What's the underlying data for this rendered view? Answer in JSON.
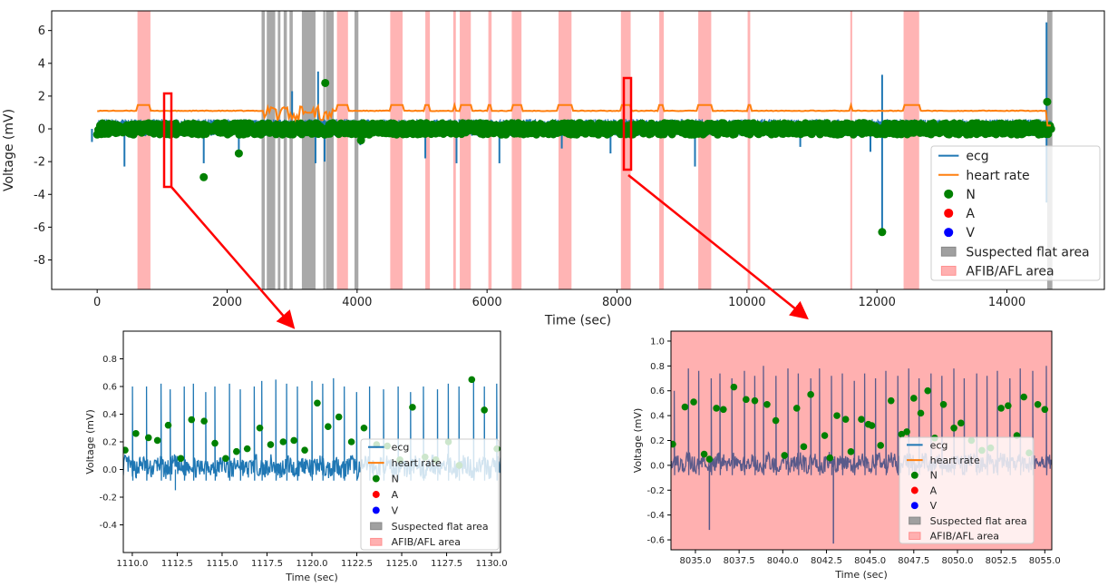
{
  "colors": {
    "ecg": "#1f77b4",
    "heart_rate": "#ff7f0e",
    "N": "#008000",
    "A": "#ff0000",
    "V": "#0000ff",
    "flat": "#a0a0a0",
    "afib": "#ffb0b0",
    "callout": "#ff0000"
  },
  "chart_data": [
    {
      "id": "main",
      "type": "line",
      "xlabel": "Time (sec)",
      "ylabel": "Voltage (mV)",
      "xlim": [
        -700,
        15500
      ],
      "ylim": [
        -9.8,
        7.2
      ],
      "xticks": [
        0,
        2000,
        4000,
        6000,
        8000,
        10000,
        12000,
        14000
      ],
      "yticks": [
        -8,
        -6,
        -4,
        -2,
        0,
        2,
        4,
        6
      ],
      "legend_position": "lower-right",
      "legend": [
        "ecg",
        "heart rate",
        "N",
        "A",
        "V",
        "Suspected flat area",
        "AFIB/AFL area"
      ],
      "heart_rate_level": 1.1,
      "afib_areas": [
        [
          620,
          820
        ],
        [
          3690,
          3860
        ],
        [
          4510,
          4700
        ],
        [
          5050,
          5120
        ],
        [
          5480,
          5520
        ],
        [
          5580,
          5750
        ],
        [
          6020,
          6070
        ],
        [
          6380,
          6530
        ],
        [
          7100,
          7300
        ],
        [
          8060,
          8210
        ],
        [
          8650,
          8720
        ],
        [
          9250,
          9450
        ],
        [
          10010,
          10050
        ],
        [
          11590,
          11620
        ],
        [
          12410,
          12650
        ]
      ],
      "flat_areas": [
        [
          2530,
          2580
        ],
        [
          2610,
          2740
        ],
        [
          2780,
          2820
        ],
        [
          2870,
          2920
        ],
        [
          2960,
          3010
        ],
        [
          3150,
          3360
        ],
        [
          3480,
          3500
        ],
        [
          3520,
          3640
        ],
        [
          3960,
          4020
        ],
        [
          14620,
          14700
        ]
      ],
      "ecg_spikes": [
        [
          -80,
          -0.8
        ],
        [
          420,
          -2.3
        ],
        [
          1640,
          -2.1
        ],
        [
          2180,
          -1.4
        ],
        [
          3000,
          2.3
        ],
        [
          3360,
          -2.1
        ],
        [
          3400,
          3.5
        ],
        [
          3500,
          -2.0
        ],
        [
          4050,
          -1.0
        ],
        [
          5050,
          -1.8
        ],
        [
          5530,
          -2.1
        ],
        [
          6190,
          -2.1
        ],
        [
          7150,
          -1.2
        ],
        [
          7900,
          -1.5
        ],
        [
          9200,
          -2.3
        ],
        [
          10820,
          -1.1
        ],
        [
          11900,
          -1.4
        ],
        [
          12080,
          3.3
        ],
        [
          12080,
          -6.2
        ],
        [
          14610,
          6.5
        ],
        [
          14610,
          -4.5
        ]
      ],
      "n_outliers": [
        [
          1640,
          -2.95
        ],
        [
          2180,
          -1.5
        ],
        [
          3510,
          2.8
        ],
        [
          4060,
          -0.7
        ],
        [
          12080,
          -6.3
        ],
        [
          14620,
          1.65
        ]
      ]
    },
    {
      "id": "inset1",
      "type": "line",
      "xlabel": "Time (sec)",
      "ylabel": "Voltage (mV)",
      "xlim": [
        1109.5,
        1130.5
      ],
      "ylim": [
        -0.6,
        1.0
      ],
      "xticks": [
        1110.0,
        1112.5,
        1115.0,
        1117.5,
        1120.0,
        1122.5,
        1125.0,
        1127.5,
        1130.0
      ],
      "yticks": [
        -0.4,
        -0.2,
        0.0,
        0.2,
        0.4,
        0.6,
        0.8
      ],
      "legend_position": "lower-right",
      "legend": [
        "ecg",
        "heart rate",
        "N",
        "A",
        "V",
        "Suspected flat area",
        "AFIB/AFL area"
      ],
      "peaks": [
        1110.0,
        1110.8,
        1111.6,
        1112.1,
        1112.9,
        1113.4,
        1114.1,
        1114.6,
        1115.4,
        1116.0,
        1116.8,
        1117.2,
        1118.0,
        1118.6,
        1119.2,
        1120.0,
        1120.6,
        1121.2,
        1121.8,
        1122.5,
        1123.2,
        1124.0,
        1124.8,
        1125.5,
        1126.2,
        1127.0,
        1127.6,
        1128.2,
        1129.0,
        1129.6,
        1130.3
      ],
      "peak_values": [
        0.6,
        0.6,
        0.62,
        0.58,
        0.6,
        0.62,
        0.56,
        0.6,
        0.62,
        0.58,
        0.6,
        0.64,
        0.65,
        0.62,
        0.6,
        0.64,
        0.62,
        0.66,
        0.6,
        0.56,
        0.6,
        0.58,
        0.6,
        0.56,
        0.6,
        0.58,
        0.62,
        0.6,
        0.66,
        0.6,
        0.62
      ],
      "N_points": [
        [
          1109.6,
          0.14
        ],
        [
          1110.2,
          0.26
        ],
        [
          1110.9,
          0.23
        ],
        [
          1111.4,
          0.21
        ],
        [
          1112.0,
          0.32
        ],
        [
          1112.7,
          0.08
        ],
        [
          1113.3,
          0.36
        ],
        [
          1114.0,
          0.35
        ],
        [
          1114.6,
          0.19
        ],
        [
          1115.2,
          0.08
        ],
        [
          1115.8,
          0.13
        ],
        [
          1116.4,
          0.15
        ],
        [
          1117.1,
          0.3
        ],
        [
          1117.7,
          0.18
        ],
        [
          1118.4,
          0.2
        ],
        [
          1119.0,
          0.21
        ],
        [
          1119.6,
          0.14
        ],
        [
          1120.3,
          0.48
        ],
        [
          1120.9,
          0.31
        ],
        [
          1121.5,
          0.38
        ],
        [
          1122.2,
          0.2
        ],
        [
          1122.9,
          0.3
        ],
        [
          1123.6,
          0.18
        ],
        [
          1124.2,
          0.17
        ],
        [
          1124.9,
          0.07
        ],
        [
          1125.6,
          0.45
        ],
        [
          1126.3,
          0.09
        ],
        [
          1126.9,
          0.07
        ],
        [
          1127.6,
          0.2
        ],
        [
          1128.2,
          0.03
        ],
        [
          1128.9,
          0.65
        ],
        [
          1129.6,
          0.43
        ],
        [
          1130.3,
          0.15
        ]
      ]
    },
    {
      "id": "inset2",
      "type": "line",
      "xlabel": "Time (sec)",
      "ylabel": "Voltage (mV)",
      "xlim": [
        8033.6,
        8055.4
      ],
      "ylim": [
        -0.68,
        1.08
      ],
      "xticks": [
        8035.0,
        8037.5,
        8040.0,
        8042.5,
        8045.0,
        8047.5,
        8050.0,
        8052.5,
        8055.0
      ],
      "yticks": [
        -0.6,
        -0.4,
        -0.2,
        0.0,
        0.2,
        0.4,
        0.6,
        0.8,
        1.0
      ],
      "legend_position": "lower-right",
      "legend": [
        "ecg",
        "heart rate",
        "N",
        "A",
        "V",
        "Suspected flat area",
        "AFIB/AFL area"
      ],
      "peaks": [
        8033.8,
        8034.6,
        8035.2,
        8035.9,
        8036.4,
        8037.1,
        8037.8,
        8038.4,
        8038.9,
        8039.6,
        8040.3,
        8040.9,
        8041.6,
        8042.1,
        8042.8,
        8043.4,
        8044.1,
        8044.7,
        8045.3,
        8045.9,
        8046.6,
        8047.2,
        8047.8,
        8048.5,
        8049.1,
        8049.8,
        8050.4,
        8051.1,
        8051.7,
        8052.3,
        8053.0,
        8053.6,
        8054.3,
        8055.1
      ],
      "peak_values": [
        0.6,
        0.78,
        0.76,
        0.7,
        0.74,
        0.7,
        0.76,
        0.72,
        0.8,
        0.72,
        0.78,
        0.74,
        0.7,
        0.78,
        0.72,
        0.74,
        0.68,
        0.74,
        0.7,
        0.76,
        0.72,
        0.78,
        0.7,
        0.74,
        0.72,
        0.78,
        0.7,
        0.74,
        0.72,
        0.76,
        0.7,
        0.78,
        0.76,
        0.8
      ],
      "N_points": [
        [
          8033.7,
          0.17
        ],
        [
          8034.4,
          0.47
        ],
        [
          8034.9,
          0.51
        ],
        [
          8035.5,
          0.09
        ],
        [
          8035.8,
          0.05
        ],
        [
          8036.2,
          0.46
        ],
        [
          8036.6,
          0.45
        ],
        [
          8037.2,
          0.63
        ],
        [
          8037.9,
          0.53
        ],
        [
          8038.4,
          0.52
        ],
        [
          8039.1,
          0.49
        ],
        [
          8039.6,
          0.36
        ],
        [
          8040.1,
          0.08
        ],
        [
          8040.8,
          0.46
        ],
        [
          8041.2,
          0.15
        ],
        [
          8041.6,
          0.57
        ],
        [
          8042.4,
          0.24
        ],
        [
          8042.7,
          0.06
        ],
        [
          8043.1,
          0.4
        ],
        [
          8043.6,
          0.37
        ],
        [
          8043.9,
          0.11
        ],
        [
          8044.5,
          0.37
        ],
        [
          8044.9,
          0.33
        ],
        [
          8045.1,
          0.32
        ],
        [
          8045.6,
          0.16
        ],
        [
          8046.2,
          0.52
        ],
        [
          8046.8,
          0.25
        ],
        [
          8047.1,
          0.27
        ],
        [
          8047.5,
          0.54
        ],
        [
          8047.9,
          0.42
        ],
        [
          8048.3,
          0.6
        ],
        [
          8048.7,
          0.22
        ],
        [
          8049.2,
          0.49
        ],
        [
          8049.8,
          0.3
        ],
        [
          8050.2,
          0.34
        ],
        [
          8050.8,
          0.2
        ],
        [
          8051.4,
          0.12
        ],
        [
          8051.9,
          0.14
        ],
        [
          8052.5,
          0.46
        ],
        [
          8052.9,
          0.48
        ],
        [
          8053.4,
          0.24
        ],
        [
          8053.8,
          0.55
        ],
        [
          8054.1,
          0.1
        ],
        [
          8054.6,
          0.49
        ],
        [
          8055.0,
          0.45
        ]
      ]
    }
  ]
}
